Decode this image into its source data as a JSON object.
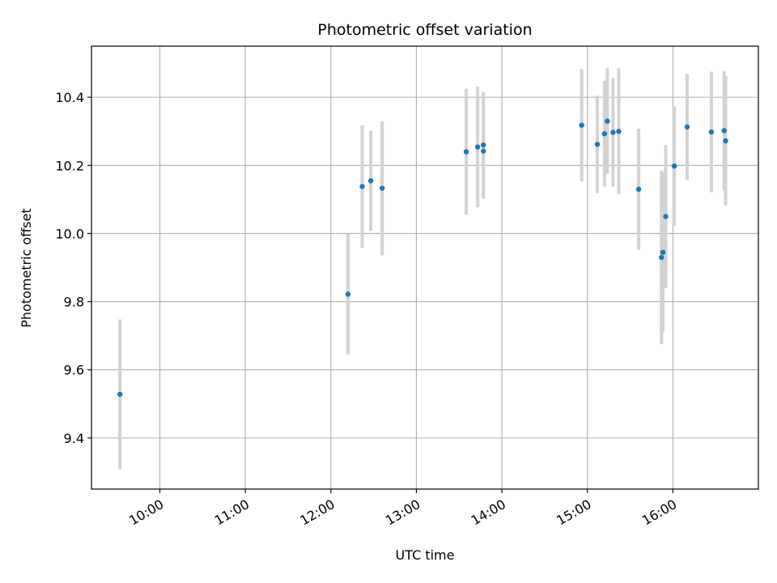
{
  "chart_data": {
    "type": "scatter",
    "title": "Photometric offset variation",
    "xlabel": "UTC time",
    "ylabel": "Photometric offset",
    "x_ticks": [
      "10:00",
      "11:00",
      "12:00",
      "13:00",
      "14:00",
      "15:00",
      "16:00"
    ],
    "y_ticks": [
      "9.4",
      "9.6",
      "9.8",
      "10.0",
      "10.2",
      "10.4"
    ],
    "xlim": [
      "09:12",
      "17:00"
    ],
    "ylim": [
      9.25,
      10.55
    ],
    "grid": true,
    "legend": "none",
    "colors": {
      "point": "#1f77b4",
      "errorbar": "#d3d3d3",
      "grid": "#b0b0b0"
    },
    "points": [
      {
        "x": "09:32",
        "y": 9.528,
        "yerr": 0.22
      },
      {
        "x": "12:12",
        "y": 9.822,
        "yerr": 0.177
      },
      {
        "x": "12:22",
        "y": 10.138,
        "yerr": 0.18
      },
      {
        "x": "12:28",
        "y": 10.155,
        "yerr": 0.147
      },
      {
        "x": "12:36",
        "y": 10.133,
        "yerr": 0.197
      },
      {
        "x": "13:35",
        "y": 10.24,
        "yerr": 0.185
      },
      {
        "x": "13:43",
        "y": 10.254,
        "yerr": 0.177
      },
      {
        "x": "13:47",
        "y": 10.26,
        "yerr": 0.155
      },
      {
        "x": "13:47",
        "y": 10.242,
        "yerr": 0.14
      },
      {
        "x": "14:56",
        "y": 10.318,
        "yerr": 0.165
      },
      {
        "x": "15:07",
        "y": 10.262,
        "yerr": 0.143
      },
      {
        "x": "15:12",
        "y": 10.293,
        "yerr": 0.155
      },
      {
        "x": "15:14",
        "y": 10.33,
        "yerr": 0.155
      },
      {
        "x": "15:18",
        "y": 10.297,
        "yerr": 0.16
      },
      {
        "x": "15:22",
        "y": 10.3,
        "yerr": 0.185
      },
      {
        "x": "15:36",
        "y": 10.13,
        "yerr": 0.178
      },
      {
        "x": "15:52",
        "y": 9.93,
        "yerr": 0.255
      },
      {
        "x": "15:53",
        "y": 9.945,
        "yerr": 0.235
      },
      {
        "x": "15:55",
        "y": 10.05,
        "yerr": 0.21
      },
      {
        "x": "16:01",
        "y": 10.198,
        "yerr": 0.175
      },
      {
        "x": "16:10",
        "y": 10.313,
        "yerr": 0.155
      },
      {
        "x": "16:27",
        "y": 10.298,
        "yerr": 0.177
      },
      {
        "x": "16:36",
        "y": 10.302,
        "yerr": 0.175
      },
      {
        "x": "16:37",
        "y": 10.272,
        "yerr": 0.19
      }
    ]
  }
}
